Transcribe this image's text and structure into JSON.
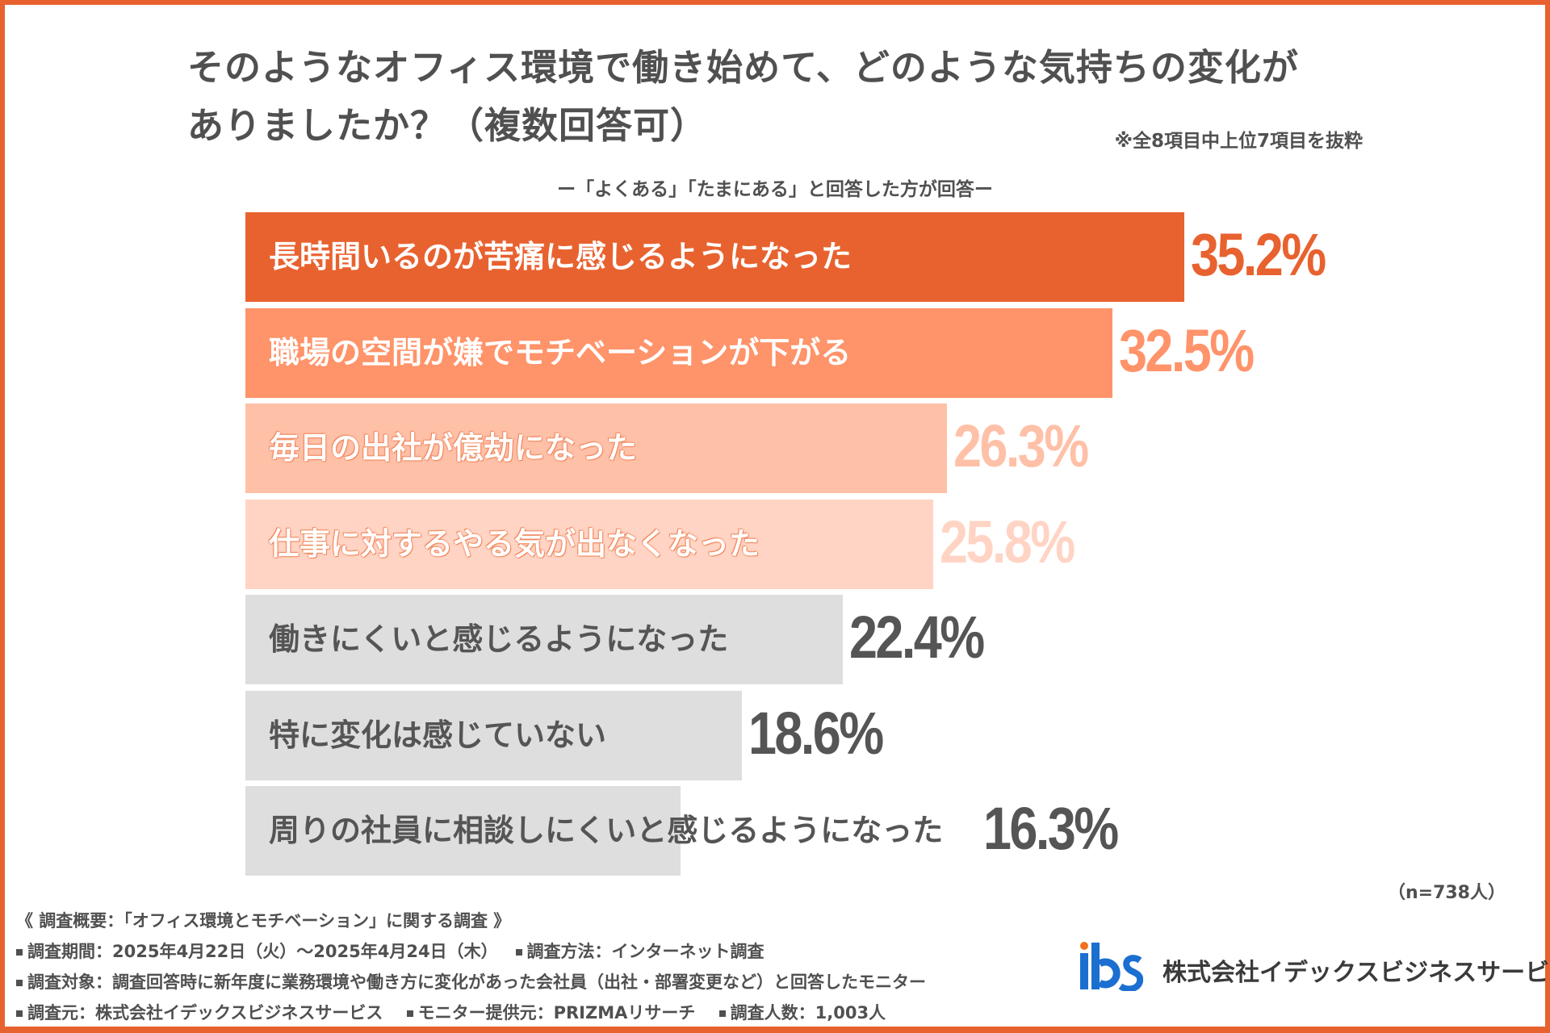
{
  "title_line1": "そのようなオフィス環境で働き始めて、どのような気持ちの変化が",
  "title_line2": "ありましたか？（複数回答可）",
  "note": "※全8項目中上位7項目を抜粋",
  "subtitle": "ー「よくある」「たまにある」と回答した方が回答ー",
  "sample_size": "（n=738人）",
  "chart_data": {
    "type": "bar",
    "orientation": "horizontal",
    "title": "そのようなオフィス環境で働き始めて、どのような気持ちの変化がありましたか？（複数回答可）",
    "categories": [
      "長時間いるのが苦痛に感じるようになった",
      "職場の空間が嫌でモチベーションが下がる",
      "毎日の出社が億劫になった",
      "仕事に対するやる気が出なくなった",
      "働きにくいと感じるようになった",
      "特に変化は感じていない",
      "周りの社員に相談しにくいと感じるようになった"
    ],
    "values": [
      35.2,
      32.5,
      26.3,
      25.8,
      22.4,
      18.6,
      16.3
    ],
    "value_labels": [
      "35.2%",
      "32.5%",
      "26.3%",
      "25.8%",
      "22.4%",
      "18.6%",
      "16.3%"
    ],
    "unit": "%",
    "bar_colors": [
      "#E8622F",
      "#FF9369",
      "#FFC0A8",
      "#FFD4C4",
      "#DEDEDE",
      "#DEDEDE",
      "#DEDEDE"
    ],
    "label_colors": [
      "#FFFFFF",
      "#FFFFFF",
      "#FFFFFF",
      "#FFFFFF",
      "#555555",
      "#555555",
      "#555555"
    ],
    "value_colors": [
      "#E8622F",
      "#FF9369",
      "#FFC0A8",
      "#FFD4C4",
      "#555555",
      "#555555",
      "#555555"
    ],
    "grid": false,
    "legend": "none"
  },
  "footer": {
    "heading": "《 調査概要：「オフィス環境とモチベーション」に関する調査 》",
    "period": "調査期間：2025年4月22日（火）～2025年4月24日（木）",
    "method": "調査方法：インターネット調査",
    "target": "調査対象：調査回答時に新年度に業務環境や働き方に変化があった会社員（出社・部署変更など）と回答したモニター",
    "source": "調査元：株式会社イデックスビジネスサービス",
    "provider": "モニター提供元：PRIZMAリサーチ",
    "count": "調査人数：1,003人"
  },
  "logo": {
    "text": "ibs",
    "company": "株式会社イデックスビジネスサービス",
    "colors": [
      "#F07020",
      "#1A6FD0"
    ]
  },
  "accent": "#E8622F"
}
